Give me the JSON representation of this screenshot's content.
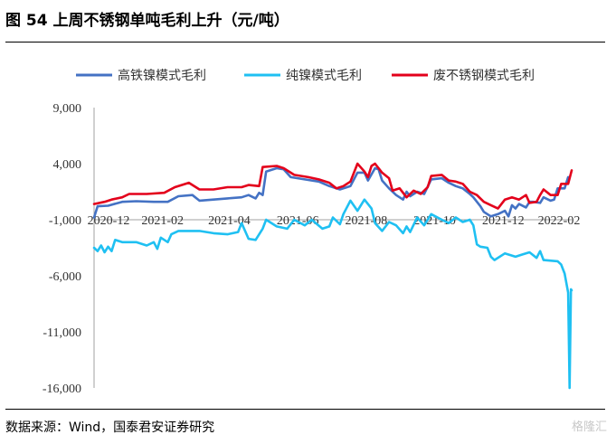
{
  "title": "图 54  上周不锈钢单吨毛利上升（元/吨）",
  "source": "数据来源：Wind，国泰君安证券研究",
  "watermark": "格隆汇",
  "chart_data": {
    "type": "line",
    "title": "",
    "xlabel": "",
    "ylabel": "",
    "ylim": [
      -16000,
      9000
    ],
    "yticks": [
      9000,
      4000,
      -1000,
      -6000,
      -11000,
      -16000
    ],
    "ytick_labels": [
      "9,000",
      "4,000",
      "-1,000",
      "-6,000",
      "-11,000",
      "-16,000"
    ],
    "xticks": [
      "2020-12",
      "2021-02",
      "2021-04",
      "2021-06",
      "2021-08",
      "2021-10",
      "2021-12",
      "2022-02"
    ],
    "legend_position": "top",
    "grid": false,
    "series": [
      {
        "name": "高铁镍模式毛利",
        "color": "#4472C4",
        "points": [
          [
            0,
            -800
          ],
          [
            1,
            200
          ],
          [
            4,
            250
          ],
          [
            8,
            600
          ],
          [
            12,
            650
          ],
          [
            17,
            600
          ],
          [
            21,
            600
          ],
          [
            24,
            1100
          ],
          [
            28,
            1200
          ],
          [
            30,
            700
          ],
          [
            34,
            800
          ],
          [
            38,
            900
          ],
          [
            42,
            1000
          ],
          [
            44,
            1200
          ],
          [
            46,
            900
          ],
          [
            47,
            1400
          ],
          [
            48,
            1200
          ],
          [
            49,
            3300
          ],
          [
            52,
            3600
          ],
          [
            54,
            3500
          ],
          [
            56,
            2800
          ],
          [
            60,
            2600
          ],
          [
            64,
            2400
          ],
          [
            67,
            2000
          ],
          [
            70,
            1700
          ],
          [
            73,
            2000
          ],
          [
            75,
            3200
          ],
          [
            77,
            3200
          ],
          [
            78,
            2500
          ],
          [
            80,
            3600
          ],
          [
            81,
            3500
          ],
          [
            82,
            2500
          ],
          [
            84,
            1800
          ],
          [
            86,
            1200
          ],
          [
            88,
            800
          ],
          [
            89,
            1500
          ],
          [
            90,
            1100
          ],
          [
            92,
            1500
          ],
          [
            94,
            1300
          ],
          [
            96,
            2600
          ],
          [
            99,
            2700
          ],
          [
            101,
            2300
          ],
          [
            103,
            2000
          ],
          [
            105,
            1800
          ],
          [
            107,
            1300
          ],
          [
            108,
            1000
          ],
          [
            110,
            200
          ],
          [
            111,
            -300
          ],
          [
            113,
            -700
          ],
          [
            115,
            -500
          ],
          [
            117,
            -200
          ],
          [
            118,
            -700
          ],
          [
            119,
            300
          ],
          [
            120,
            0
          ],
          [
            121,
            400
          ],
          [
            123,
            100
          ],
          [
            124,
            600
          ],
          [
            125,
            600
          ],
          [
            127,
            500
          ],
          [
            128,
            1000
          ],
          [
            130,
            700
          ],
          [
            131,
            800
          ],
          [
            132,
            1800
          ],
          [
            134,
            1800
          ],
          [
            135,
            2800
          ]
        ]
      },
      {
        "name": "纯镍模式毛利",
        "color": "#1FC0F2",
        "points": [
          [
            0,
            -3500
          ],
          [
            1,
            -3800
          ],
          [
            2,
            -3300
          ],
          [
            3,
            -3900
          ],
          [
            4,
            -3400
          ],
          [
            5,
            -3800
          ],
          [
            6,
            -2800
          ],
          [
            8,
            -3000
          ],
          [
            12,
            -3000
          ],
          [
            15,
            -3300
          ],
          [
            17,
            -3000
          ],
          [
            18,
            -3600
          ],
          [
            19,
            -2600
          ],
          [
            21,
            -3000
          ],
          [
            22,
            -2300
          ],
          [
            24,
            -2000
          ],
          [
            26,
            -2000
          ],
          [
            30,
            -2000
          ],
          [
            34,
            -2200
          ],
          [
            38,
            -2300
          ],
          [
            41,
            -2100
          ],
          [
            42,
            -1300
          ],
          [
            44,
            -2700
          ],
          [
            46,
            -2800
          ],
          [
            48,
            -1800
          ],
          [
            49,
            -1000
          ],
          [
            52,
            -1600
          ],
          [
            55,
            -1800
          ],
          [
            57,
            -1000
          ],
          [
            60,
            -1500
          ],
          [
            62,
            -1000
          ],
          [
            65,
            -1800
          ],
          [
            67,
            -1600
          ],
          [
            68,
            -800
          ],
          [
            70,
            -1400
          ],
          [
            71,
            -500
          ],
          [
            73,
            700
          ],
          [
            75,
            -200
          ],
          [
            77,
            800
          ],
          [
            79,
            0
          ],
          [
            80,
            -1300
          ],
          [
            82,
            -2000
          ],
          [
            84,
            -1200
          ],
          [
            86,
            -1500
          ],
          [
            88,
            -2200
          ],
          [
            89,
            -1600
          ],
          [
            90,
            -2100
          ],
          [
            92,
            -800
          ],
          [
            94,
            -1500
          ],
          [
            96,
            -500
          ],
          [
            99,
            -1000
          ],
          [
            101,
            -1300
          ],
          [
            103,
            -800
          ],
          [
            105,
            -1200
          ],
          [
            107,
            -1000
          ],
          [
            108,
            -1500
          ],
          [
            109,
            -3200
          ],
          [
            110,
            -3400
          ],
          [
            112,
            -3500
          ],
          [
            113,
            -4300
          ],
          [
            114,
            -4600
          ],
          [
            117,
            -4000
          ],
          [
            120,
            -4300
          ],
          [
            122,
            -4100
          ],
          [
            124,
            -3900
          ],
          [
            126,
            -4400
          ],
          [
            127,
            -3800
          ],
          [
            128,
            -4600
          ],
          [
            132,
            -4700
          ],
          [
            133,
            -5000
          ],
          [
            134,
            -5800
          ],
          [
            135,
            -7500
          ],
          [
            135.4,
            -16000
          ],
          [
            135.8,
            -7200
          ],
          [
            136,
            -7300
          ]
        ]
      },
      {
        "name": "废不锈钢模式毛利",
        "color": "#E3001B",
        "points": [
          [
            0,
            400
          ],
          [
            3,
            600
          ],
          [
            5,
            800
          ],
          [
            8,
            1000
          ],
          [
            10,
            1300
          ],
          [
            15,
            1300
          ],
          [
            20,
            1400
          ],
          [
            23,
            1900
          ],
          [
            27,
            2300
          ],
          [
            30,
            1700
          ],
          [
            34,
            1700
          ],
          [
            38,
            1900
          ],
          [
            42,
            1900
          ],
          [
            44,
            2100
          ],
          [
            47,
            2000
          ],
          [
            48,
            3700
          ],
          [
            52,
            3800
          ],
          [
            54,
            3600
          ],
          [
            57,
            3000
          ],
          [
            61,
            2800
          ],
          [
            64,
            2600
          ],
          [
            67,
            2300
          ],
          [
            69,
            1800
          ],
          [
            71,
            2000
          ],
          [
            73,
            2400
          ],
          [
            75,
            4000
          ],
          [
            77,
            3300
          ],
          [
            78,
            2800
          ],
          [
            79,
            3800
          ],
          [
            80,
            4000
          ],
          [
            82,
            3200
          ],
          [
            84,
            2700
          ],
          [
            85,
            1600
          ],
          [
            87,
            1800
          ],
          [
            89,
            1000
          ],
          [
            91,
            1600
          ],
          [
            93,
            1300
          ],
          [
            95,
            1900
          ],
          [
            96,
            2900
          ],
          [
            99,
            3000
          ],
          [
            101,
            2500
          ],
          [
            103,
            2400
          ],
          [
            105,
            2200
          ],
          [
            107,
            1500
          ],
          [
            109,
            1200
          ],
          [
            111,
            600
          ],
          [
            113,
            300
          ],
          [
            115,
            0
          ],
          [
            117,
            800
          ],
          [
            119,
            1000
          ],
          [
            121,
            800
          ],
          [
            123,
            1200
          ],
          [
            124,
            500
          ],
          [
            126,
            600
          ],
          [
            127,
            1200
          ],
          [
            128,
            1700
          ],
          [
            130,
            1200
          ],
          [
            132,
            1200
          ],
          [
            133,
            2200
          ],
          [
            135,
            2200
          ],
          [
            136,
            3400
          ]
        ]
      }
    ]
  }
}
